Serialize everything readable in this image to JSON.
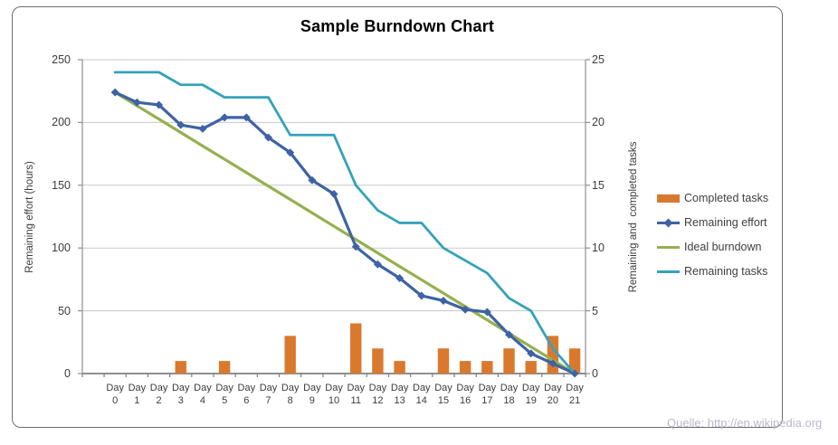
{
  "title": "Sample Burndown Chart",
  "source_note": "Quelle: http://en.wikipedia.org",
  "axes": {
    "left": {
      "title": "Remaining effort (hours)",
      "ticks": [
        250,
        200,
        150,
        100,
        50,
        0
      ]
    },
    "right": {
      "title": "Remaining and  completed tasks",
      "ticks": [
        25,
        20,
        15,
        10,
        5,
        0
      ]
    }
  },
  "legend": [
    {
      "label": "Completed tasks",
      "swatch": "bar",
      "color": "#d9792e"
    },
    {
      "label": "Remaining effort",
      "swatch": "line-diamond",
      "color": "#3e63a4"
    },
    {
      "label": "Ideal burndown",
      "swatch": "line",
      "color": "#95b04f"
    },
    {
      "label": "Remaining tasks",
      "swatch": "line",
      "color": "#35a2bb"
    }
  ],
  "colors": {
    "grid": "#c8c8c8",
    "axis": "#8f8f8f",
    "x_axis": "#7f7f7f",
    "tick_text": "#3c3c3c",
    "title_text": "#000000",
    "source_text": "#b9bac9",
    "frame_border": "#6e6e6e"
  },
  "chart_data": {
    "type": "line",
    "note": "combo chart: one bar series on right axis + three line series",
    "categories": [
      "Day 0",
      "Day 1",
      "Day 2",
      "Day 3",
      "Day 4",
      "Day 5",
      "Day 6",
      "Day 7",
      "Day 8",
      "Day 9",
      "Day 10",
      "Day 11",
      "Day 12",
      "Day 13",
      "Day 14",
      "Day 15",
      "Day 16",
      "Day 17",
      "Day 18",
      "Day 19",
      "Day 20",
      "Day 21"
    ],
    "series": [
      {
        "name": "Completed tasks",
        "kind": "bar",
        "axis": "right",
        "color": "#d9792e",
        "values": [
          0,
          0,
          0,
          1,
          0,
          1,
          0,
          0,
          3,
          0,
          0,
          4,
          2,
          1,
          0,
          2,
          1,
          1,
          2,
          1,
          3,
          2
        ]
      },
      {
        "name": "Remaining effort",
        "kind": "line",
        "axis": "left",
        "color": "#3e63a4",
        "marker": "diamond",
        "values": [
          224,
          216,
          214,
          198,
          195,
          204,
          204,
          188,
          176,
          154,
          143,
          101,
          87,
          76,
          62,
          58,
          51,
          49,
          31,
          16,
          8,
          0
        ]
      },
      {
        "name": "Ideal burndown",
        "kind": "line",
        "axis": "left",
        "color": "#95b04f",
        "values": [
          224,
          213.3,
          202.7,
          192,
          181.3,
          170.7,
          160,
          149.3,
          138.7,
          128,
          117.3,
          106.7,
          96,
          85.3,
          74.7,
          64,
          53.3,
          42.7,
          32,
          21.3,
          10.7,
          0
        ]
      },
      {
        "name": "Remaining tasks",
        "kind": "line",
        "axis": "right",
        "color": "#35a2bb",
        "values": [
          24,
          24,
          24,
          23,
          23,
          22,
          22,
          22,
          19,
          19,
          19,
          15,
          13,
          12,
          12,
          10,
          9,
          8,
          6,
          5,
          2,
          0
        ]
      }
    ],
    "ylim_left": [
      0,
      250
    ],
    "ylim_right": [
      0,
      25
    ],
    "left_grid_step": 50,
    "right_grid_step": 5,
    "grid": "horizontal-only",
    "legend_position": "right"
  }
}
